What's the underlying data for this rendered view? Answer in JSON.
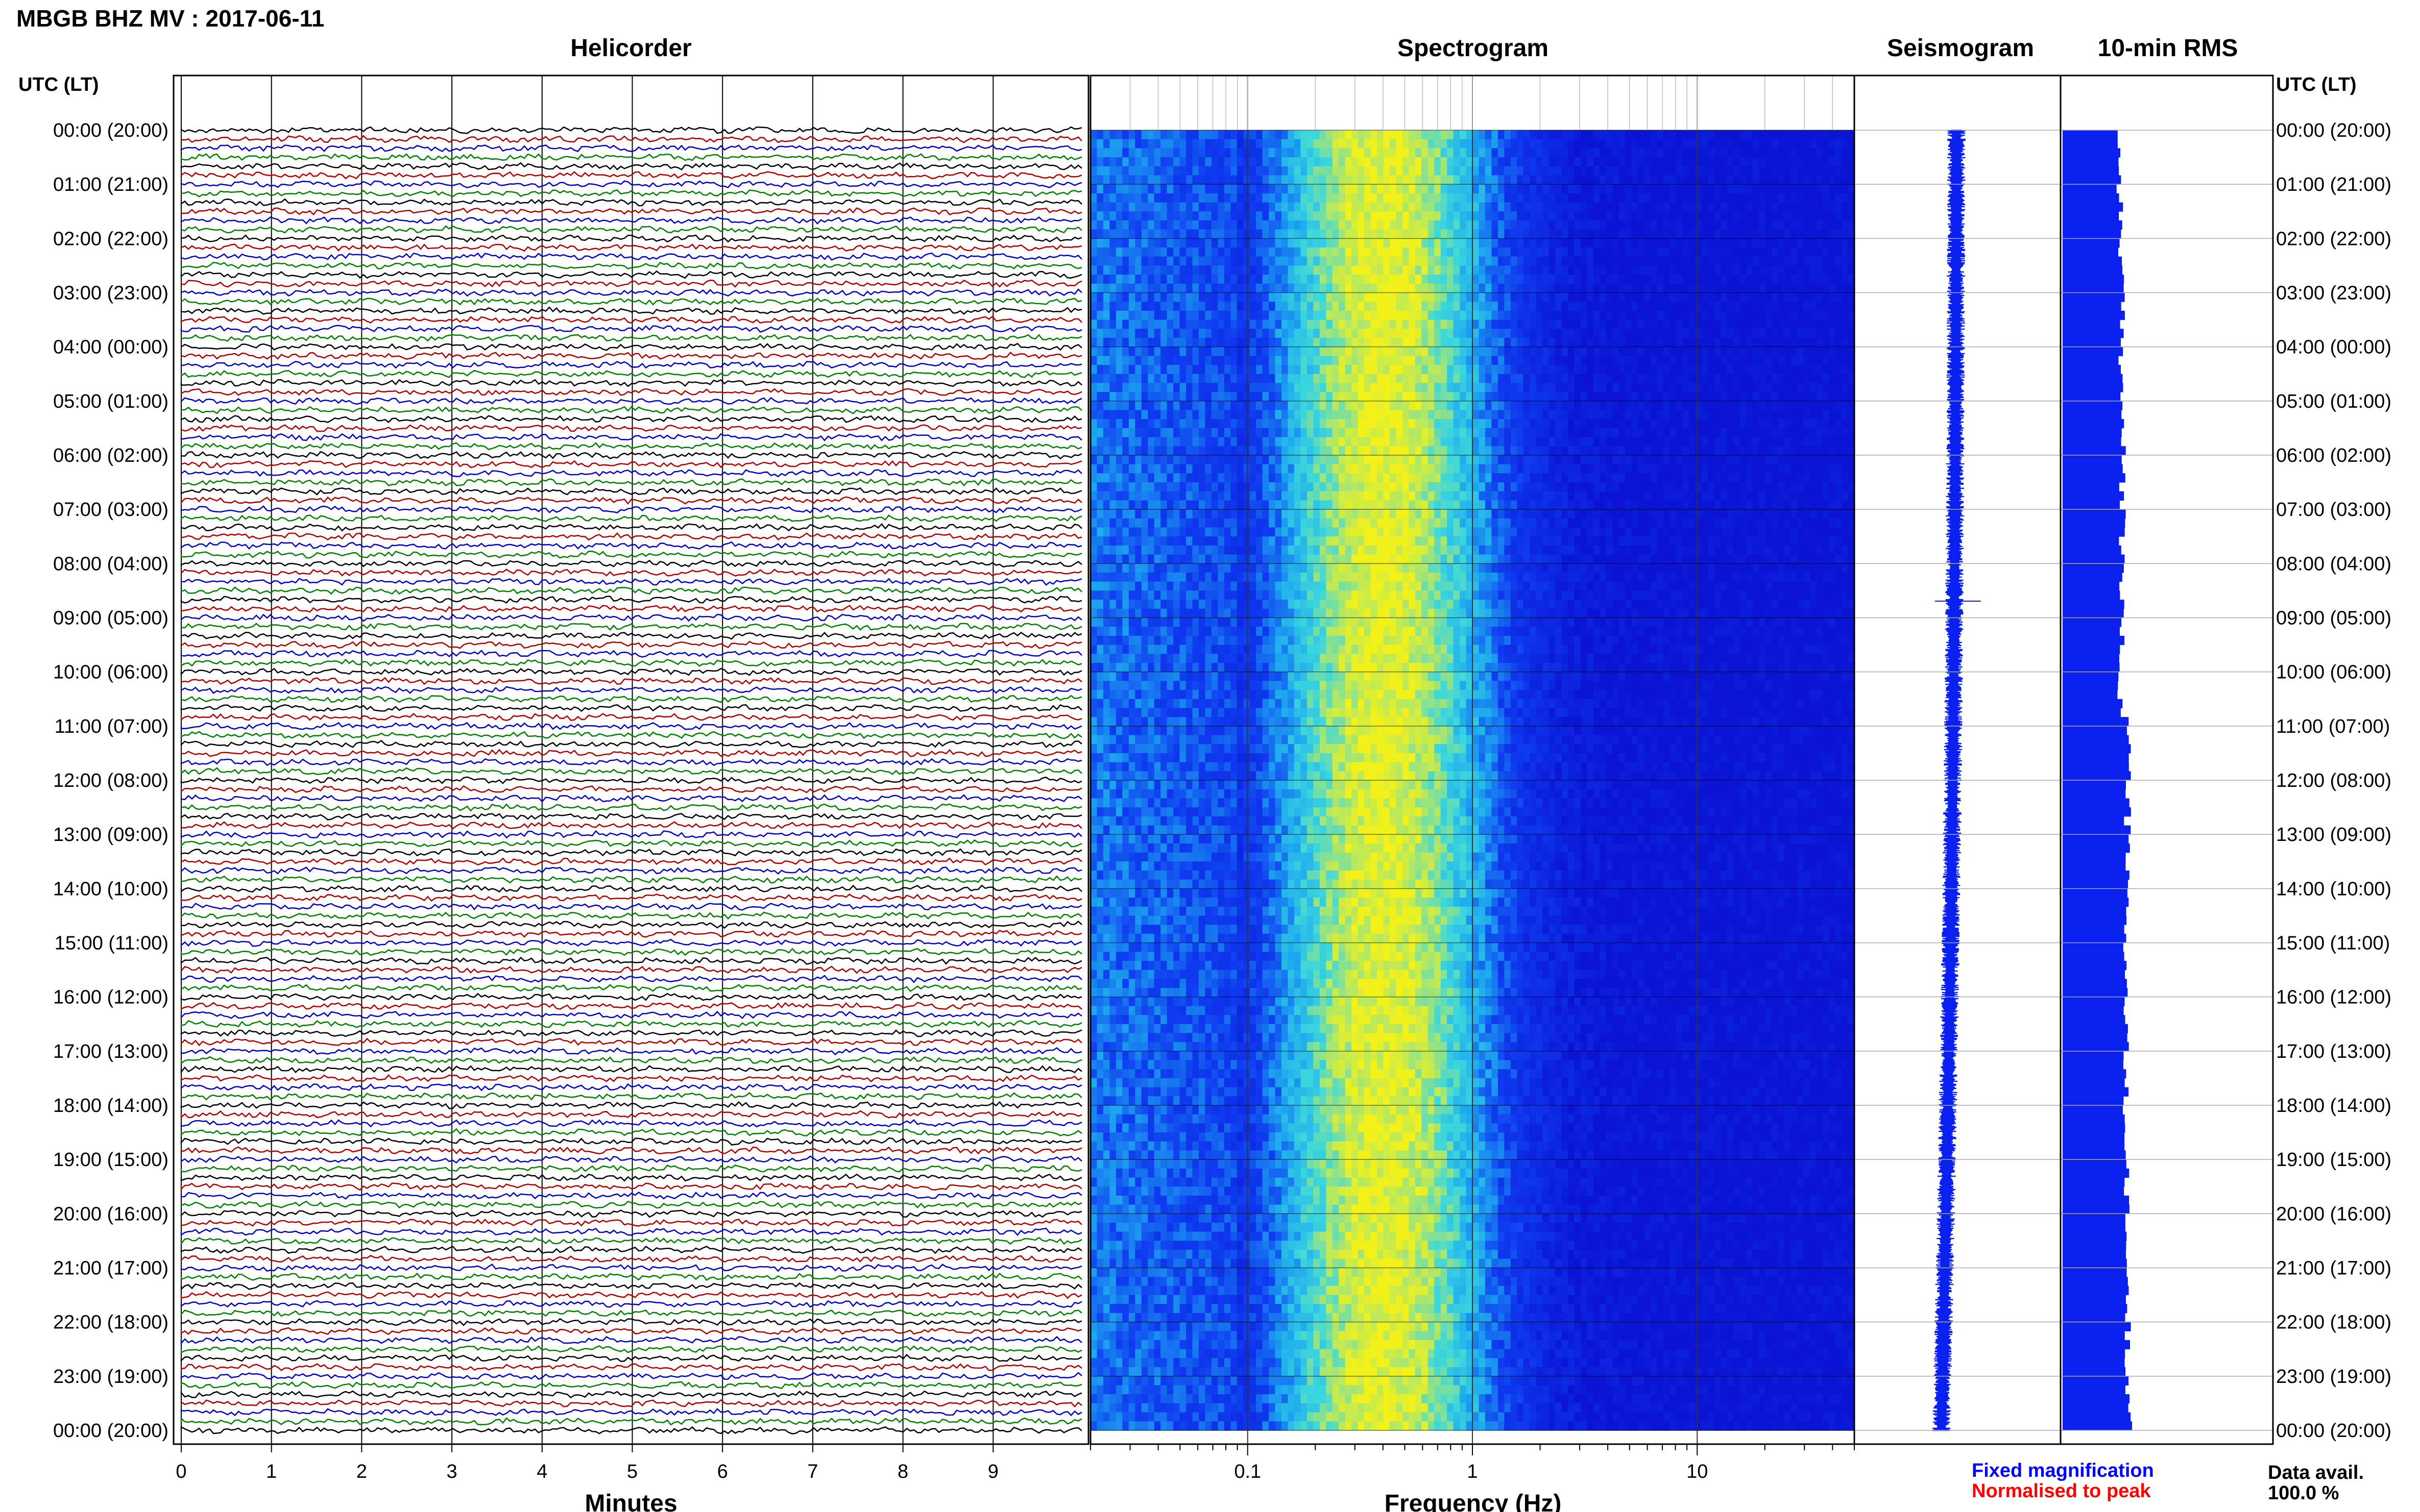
{
  "header": {
    "title": "MBGB BHZ MV : 2017-06-11"
  },
  "panels": {
    "helicorder": "Helicorder",
    "spectrogram": "Spectrogram",
    "seismogram": "Seismogram",
    "rms": "10-min RMS"
  },
  "axes": {
    "left_time_label": "UTC (LT)",
    "right_time_label": "UTC (LT)",
    "helicorder_xlabel": "Minutes",
    "spectrogram_xlabel": "Frequency (Hz)"
  },
  "legend": {
    "fixed": "Fixed magnification",
    "normalised": "Normalised to peak",
    "data_avail_label": "Data avail.",
    "data_avail_value": "100.0 %"
  },
  "colors": {
    "trace_cycle": [
      "#000000",
      "#b00000",
      "#0000c8",
      "#008000"
    ],
    "spectrogram_low": "#0a1fd8",
    "spectrogram_high": "#f2f21a",
    "rms_bar": "#0a20ee",
    "seismogram": "#0a20ee",
    "legend_fixed": "#0000ff",
    "legend_normalised": "#ff0000"
  },
  "chart_data": [
    {
      "type": "line",
      "title": "Helicorder",
      "xlabel": "Minutes",
      "xlim": [
        0,
        10
      ],
      "x_ticks": [
        "0",
        "1",
        "2",
        "3",
        "4",
        "5",
        "6",
        "7",
        "8",
        "9"
      ],
      "y_categories": [
        "00:00 (20:00)",
        "01:00 (21:00)",
        "02:00 (22:00)",
        "03:00 (23:00)",
        "04:00 (00:00)",
        "05:00 (01:00)",
        "06:00 (02:00)",
        "07:00 (03:00)",
        "08:00 (04:00)",
        "09:00 (05:00)",
        "10:00 (06:00)",
        "11:00 (07:00)",
        "12:00 (08:00)",
        "13:00 (09:00)",
        "14:00 (10:00)",
        "15:00 (11:00)",
        "16:00 (12:00)",
        "17:00 (13:00)",
        "18:00 (14:00)",
        "19:00 (15:00)",
        "20:00 (16:00)",
        "21:00 (17:00)",
        "22:00 (18:00)",
        "23:00 (19:00)",
        "00:00 (20:00)"
      ],
      "traces_per_hour": 6,
      "trace_minutes": 10,
      "grid": true
    },
    {
      "type": "heatmap",
      "title": "Spectrogram",
      "xlabel": "Frequency (Hz)",
      "x_scale": "log",
      "xlim": [
        0.02,
        50
      ],
      "x_ticks": [
        "0.1",
        "1",
        "10"
      ],
      "peak_frequency_hz": 0.4,
      "grid": true
    },
    {
      "type": "line",
      "title": "Seismogram",
      "note": "Fixed magnification"
    },
    {
      "type": "bar",
      "title": "10-min RMS",
      "orientation": "horizontal",
      "note": "Normalised to peak"
    }
  ]
}
